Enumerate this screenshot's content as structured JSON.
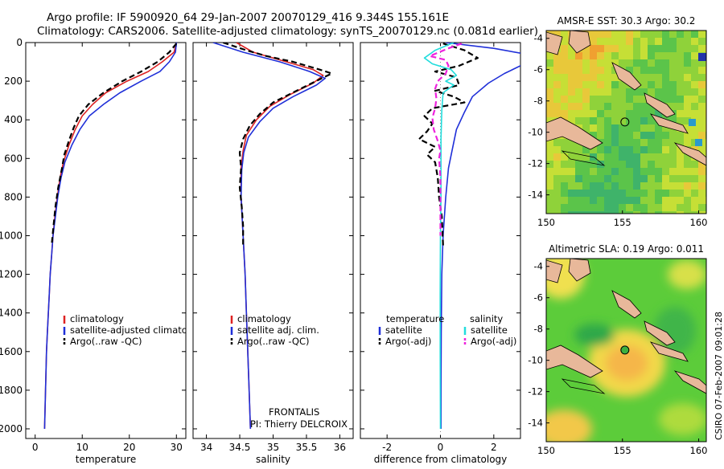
{
  "title_line1": "Argo profile: IF 5900920_64 29-Jan-2007 20070129_416 9.344S 155.161E",
  "title_line2": "Climatology: CARS2006. Satellite-adjusted climatology: synTS_20070129.nc (0.081d earlier)",
  "credit": "CSIRO 07-Feb-2007 09:01:28",
  "project": "FRONTALIS",
  "pi": "PI: Thierry DELCROIX",
  "colors": {
    "climatology": "#dd2222",
    "satellite": "#1f2fd8",
    "argo": "#000000",
    "argo_adj": "#ee22dd",
    "satellite_sal": "#22dddd"
  },
  "chart_data": [
    {
      "type": "line",
      "id": "temperature",
      "xlabel": "temperature",
      "ylabel": "",
      "xlim": [
        -2,
        32
      ],
      "ylim": [
        2050,
        0
      ],
      "xticks": [
        0,
        10,
        20,
        30
      ],
      "yticks": [
        0,
        200,
        400,
        600,
        800,
        1000,
        1200,
        1400,
        1600,
        1800,
        2000
      ],
      "legend": [
        "climatology",
        "satellite-adjusted climatology",
        "Argo(..raw -QC)"
      ],
      "legend_position": "lower-right",
      "series": [
        {
          "name": "climatology",
          "style": "solid",
          "color": "#dd2222",
          "points": [
            [
              30.0,
              0
            ],
            [
              29.5,
              50
            ],
            [
              27,
              100
            ],
            [
              24,
              150
            ],
            [
              19.5,
              200
            ],
            [
              15,
              260
            ],
            [
              12.2,
              320
            ],
            [
              10,
              380
            ],
            [
              8.5,
              450
            ],
            [
              7.2,
              530
            ],
            [
              6,
              620
            ],
            [
              5.3,
              700
            ],
            [
              4.7,
              800
            ],
            [
              4.2,
              900
            ],
            [
              3.8,
              1000
            ],
            [
              3.5,
              1100
            ],
            [
              3.2,
              1200
            ],
            [
              3.0,
              1300
            ],
            [
              2.8,
              1400
            ],
            [
              2.6,
              1500
            ],
            [
              2.4,
              1600
            ],
            [
              2.3,
              1700
            ],
            [
              2.2,
              1800
            ],
            [
              2.1,
              1900
            ],
            [
              2.0,
              2000
            ]
          ]
        },
        {
          "name": "satellite-adjusted climatology",
          "style": "solid",
          "color": "#1f2fd8",
          "points": [
            [
              30.0,
              0
            ],
            [
              29.8,
              50
            ],
            [
              28.5,
              100
            ],
            [
              26.5,
              150
            ],
            [
              22.5,
              200
            ],
            [
              18,
              260
            ],
            [
              14.5,
              320
            ],
            [
              11.5,
              380
            ],
            [
              9.5,
              450
            ],
            [
              7.8,
              530
            ],
            [
              6.3,
              620
            ],
            [
              5.5,
              700
            ],
            [
              4.8,
              800
            ],
            [
              4.3,
              900
            ],
            [
              3.8,
              1000
            ],
            [
              3.5,
              1100
            ],
            [
              3.2,
              1200
            ],
            [
              3.0,
              1300
            ],
            [
              2.8,
              1400
            ],
            [
              2.6,
              1500
            ],
            [
              2.4,
              1600
            ],
            [
              2.3,
              1700
            ],
            [
              2.2,
              1800
            ],
            [
              2.1,
              1900
            ],
            [
              2.0,
              2000
            ]
          ]
        },
        {
          "name": "Argo(..raw -QC)",
          "style": "dashed",
          "color": "#000000",
          "points": [
            [
              30.0,
              5
            ],
            [
              28.5,
              50
            ],
            [
              26,
              100
            ],
            [
              22.5,
              150
            ],
            [
              18.5,
              200
            ],
            [
              14.5,
              260
            ],
            [
              11.3,
              320
            ],
            [
              9.3,
              380
            ],
            [
              8.2,
              440
            ],
            [
              7.3,
              500
            ],
            [
              6.2,
              580
            ],
            [
              5.7,
              650
            ],
            [
              4.9,
              750
            ],
            [
              4.3,
              850
            ],
            [
              3.9,
              950
            ],
            [
              3.5,
              1050
            ]
          ]
        }
      ]
    },
    {
      "type": "line",
      "id": "salinity",
      "xlabel": "salinity",
      "ylabel": "",
      "xlim": [
        33.8,
        36.2
      ],
      "ylim": [
        2050,
        0
      ],
      "xticks": [
        34,
        34.5,
        35,
        35.5,
        36
      ],
      "legend": [
        "climatology",
        "satellite adj. clim.",
        "Argo(..raw -QC)"
      ],
      "legend_position": "lower-right",
      "series": [
        {
          "name": "climatology",
          "style": "solid",
          "color": "#dd2222",
          "points": [
            [
              34.45,
              0
            ],
            [
              34.7,
              50
            ],
            [
              35.2,
              100
            ],
            [
              35.6,
              140
            ],
            [
              35.75,
              170
            ],
            [
              35.6,
              210
            ],
            [
              35.25,
              270
            ],
            [
              34.95,
              330
            ],
            [
              34.75,
              400
            ],
            [
              34.6,
              480
            ],
            [
              34.55,
              560
            ],
            [
              34.52,
              650
            ],
            [
              34.52,
              800
            ],
            [
              34.55,
              1000
            ],
            [
              34.58,
              1200
            ],
            [
              34.6,
              1400
            ],
            [
              34.62,
              1600
            ],
            [
              34.64,
              1800
            ],
            [
              34.66,
              2000
            ]
          ]
        },
        {
          "name": "satellite adj. clim.",
          "style": "solid",
          "color": "#1f2fd8",
          "points": [
            [
              34.1,
              0
            ],
            [
              34.55,
              50
            ],
            [
              35.1,
              100
            ],
            [
              35.55,
              150
            ],
            [
              35.78,
              185
            ],
            [
              35.65,
              220
            ],
            [
              35.3,
              280
            ],
            [
              35.0,
              340
            ],
            [
              34.8,
              410
            ],
            [
              34.63,
              490
            ],
            [
              34.56,
              570
            ],
            [
              34.53,
              660
            ],
            [
              34.52,
              800
            ],
            [
              34.55,
              1000
            ],
            [
              34.58,
              1200
            ],
            [
              34.6,
              1400
            ],
            [
              34.62,
              1600
            ],
            [
              34.64,
              1800
            ],
            [
              34.66,
              2000
            ]
          ]
        },
        {
          "name": "Argo(..raw -QC)",
          "style": "dashed",
          "color": "#000000",
          "points": [
            [
              34.25,
              0
            ],
            [
              34.6,
              40
            ],
            [
              34.9,
              70
            ],
            [
              35.3,
              100
            ],
            [
              35.7,
              140
            ],
            [
              35.88,
              160
            ],
            [
              35.7,
              190
            ],
            [
              35.35,
              250
            ],
            [
              35.0,
              310
            ],
            [
              34.8,
              370
            ],
            [
              34.65,
              430
            ],
            [
              34.55,
              500
            ],
            [
              34.5,
              570
            ],
            [
              34.52,
              650
            ],
            [
              34.5,
              750
            ],
            [
              34.53,
              850
            ],
            [
              34.55,
              950
            ],
            [
              34.55,
              1050
            ]
          ]
        }
      ]
    },
    {
      "type": "line",
      "id": "difference",
      "xlabel": "difference from climatology",
      "ylabel": "",
      "xlim": [
        -3,
        3
      ],
      "ylim": [
        2050,
        0
      ],
      "xticks": [
        -2,
        0,
        2
      ],
      "legend_title_temperature": "temperature",
      "legend_title_salinity": "salinity",
      "legend": [
        "satellite",
        "Argo(-adj)",
        "satellite",
        "Argo(-adj)"
      ],
      "legend_position": "lower-center",
      "series": [
        {
          "name": "satellite",
          "group": "temperature",
          "style": "solid",
          "color": "#1f2fd8",
          "points": [
            [
              0.2,
              0
            ],
            [
              2,
              30
            ],
            [
              3.2,
              60
            ],
            [
              3.4,
              90
            ],
            [
              3.0,
              120
            ],
            [
              2.4,
              160
            ],
            [
              1.8,
              210
            ],
            [
              1.2,
              280
            ],
            [
              0.9,
              360
            ],
            [
              0.6,
              450
            ],
            [
              0.45,
              550
            ],
            [
              0.3,
              650
            ],
            [
              0.2,
              800
            ],
            [
              0.1,
              1000
            ],
            [
              0.05,
              1200
            ],
            [
              0.03,
              1500
            ],
            [
              0.02,
              1800
            ],
            [
              0.02,
              2000
            ]
          ]
        },
        {
          "name": "Argo(-adj)",
          "group": "temperature",
          "style": "dashed",
          "color": "#000000",
          "points": [
            [
              0.1,
              5
            ],
            [
              0.9,
              40
            ],
            [
              1.4,
              80
            ],
            [
              0.7,
              120
            ],
            [
              -0.2,
              150
            ],
            [
              0.6,
              180
            ],
            [
              0.7,
              220
            ],
            [
              -0.2,
              250
            ],
            [
              0.5,
              280
            ],
            [
              0.9,
              310
            ],
            [
              -0.3,
              340
            ],
            [
              -0.6,
              380
            ],
            [
              -0.3,
              420
            ],
            [
              -0.5,
              460
            ],
            [
              -0.8,
              500
            ],
            [
              -0.2,
              540
            ],
            [
              -0.5,
              580
            ],
            [
              -0.2,
              620
            ],
            [
              -0.1,
              700
            ],
            [
              -0.05,
              800
            ],
            [
              0.05,
              900
            ],
            [
              0.1,
              1050
            ]
          ]
        },
        {
          "name": "satellite",
          "group": "salinity",
          "style": "solid",
          "color": "#22dddd",
          "points": [
            [
              0.5,
              0
            ],
            [
              -0.2,
              40
            ],
            [
              -0.6,
              80
            ],
            [
              -0.3,
              110
            ],
            [
              0.4,
              140
            ],
            [
              0.6,
              170
            ],
            [
              0.2,
              200
            ],
            [
              0.5,
              220
            ],
            [
              0.1,
              260
            ],
            [
              0.05,
              350
            ],
            [
              0.02,
              500
            ],
            [
              0.02,
              800
            ],
            [
              0,
              1000
            ],
            [
              -0.01,
              1300
            ],
            [
              -0.01,
              1600
            ],
            [
              0,
              2000
            ]
          ]
        },
        {
          "name": "Argo(-adj)",
          "group": "salinity",
          "style": "dashed",
          "color": "#ee22dd",
          "points": [
            [
              0.8,
              5
            ],
            [
              0.3,
              30
            ],
            [
              -0.4,
              70
            ],
            [
              0.2,
              90
            ],
            [
              0.3,
              120
            ],
            [
              0.2,
              160
            ],
            [
              -0.1,
              200
            ],
            [
              -0.2,
              240
            ],
            [
              -0.15,
              290
            ],
            [
              -0.2,
              340
            ],
            [
              -0.3,
              390
            ],
            [
              -0.25,
              450
            ],
            [
              -0.1,
              510
            ],
            [
              0,
              560
            ],
            [
              -0.05,
              600
            ],
            [
              0,
              700
            ],
            [
              0,
              800
            ],
            [
              0,
              1000
            ]
          ]
        }
      ]
    },
    {
      "type": "heatmap",
      "id": "sst-map",
      "title": "AMSR-E SST: 30.3 Argo: 30.2",
      "xlim": [
        150,
        160.5
      ],
      "ylim": [
        -15.2,
        -3.5
      ],
      "xticks": [
        150,
        155,
        160
      ],
      "yticks": [
        -4,
        -6,
        -8,
        -10,
        -12,
        -14
      ],
      "profile_lon": 155.161,
      "profile_lat": -9.344
    },
    {
      "type": "heatmap",
      "id": "sla-map",
      "title": "Altimetric SLA: 0.19 Argo: 0.011",
      "xlim": [
        150,
        160.5
      ],
      "ylim": [
        -15.2,
        -3.5
      ],
      "xticks": [
        150,
        155,
        160
      ],
      "yticks": [
        -4,
        -6,
        -8,
        -10,
        -12,
        -14
      ],
      "profile_lon": 155.161,
      "profile_lat": -9.344
    }
  ]
}
